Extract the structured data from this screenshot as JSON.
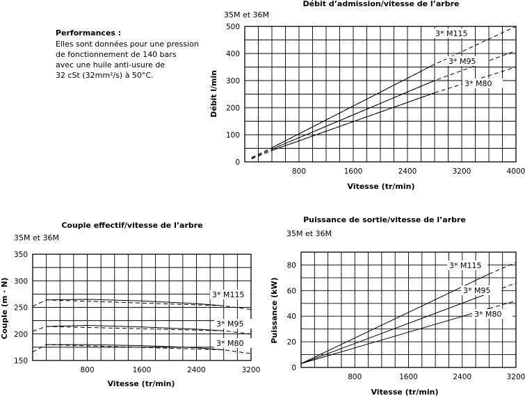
{
  "performance_note": {
    "title": "Performances :",
    "lines": [
      "Elles sont données pour une pression",
      "de fonctionnement de 140 bars",
      "avec une huile anti-usure de",
      "32 cSt (32mm²/s) à 50°C."
    ]
  },
  "chart_data": [
    {
      "type": "line",
      "title": "Débit d’admission/vitesse de l’arbre",
      "model_label": "35M et 36M",
      "xlabel": "Vitesse (tr/min)",
      "ylabel": "Débit l/min",
      "xlim": [
        0,
        4000
      ],
      "ylim": [
        0,
        500
      ],
      "xticks": [
        800,
        1600,
        2400,
        3200,
        4000
      ],
      "yticks": [
        0,
        100,
        200,
        300,
        400,
        500
      ],
      "grid": true,
      "series": [
        {
          "name": "3* M115",
          "solid": [
            [
              400,
              52
            ],
            [
              2800,
              360
            ]
          ],
          "dashed": [
            [
              100,
              16
            ],
            [
              400,
              52
            ],
            [
              2800,
              360
            ],
            [
              4000,
              500
            ]
          ]
        },
        {
          "name": "3* M95",
          "solid": [
            [
              400,
              47
            ],
            [
              2800,
              300
            ]
          ],
          "dashed": [
            [
              100,
              13
            ],
            [
              400,
              47
            ],
            [
              2800,
              300
            ],
            [
              4000,
              410
            ]
          ]
        },
        {
          "name": "3* M80",
          "solid": [
            [
              400,
              42
            ],
            [
              2800,
              255
            ]
          ],
          "dashed": [
            [
              100,
              11
            ],
            [
              400,
              42
            ],
            [
              2800,
              255
            ],
            [
              4000,
              350
            ]
          ]
        }
      ]
    },
    {
      "type": "line",
      "title": "Couple effectif/vitesse de l’arbre",
      "model_label": "35M et 36M",
      "xlabel": "Vitesse (tr/min)",
      "ylabel": "Couple (m · N)",
      "xlim": [
        0,
        3200
      ],
      "ylim": [
        150,
        350
      ],
      "xticks": [
        800,
        1600,
        2400,
        3200
      ],
      "yticks": [
        150,
        200,
        250,
        300,
        350
      ],
      "grid": true,
      "series": [
        {
          "name": "3* M115",
          "solid": [
            [
              200,
              264
            ],
            [
              800,
              265
            ],
            [
              1600,
              262
            ],
            [
              2400,
              257
            ],
            [
              2800,
              253
            ]
          ],
          "dashed": [
            [
              0,
              252
            ],
            [
              200,
              264
            ],
            [
              2800,
              253
            ],
            [
              3200,
              246
            ]
          ]
        },
        {
          "name": "3* M95",
          "solid": [
            [
              200,
              214
            ],
            [
              800,
              216
            ],
            [
              1600,
              213
            ],
            [
              2400,
              209
            ],
            [
              2800,
              206
            ]
          ],
          "dashed": [
            [
              0,
              205
            ],
            [
              200,
              214
            ],
            [
              2800,
              206
            ],
            [
              3200,
              200
            ]
          ]
        },
        {
          "name": "3* M80",
          "solid": [
            [
              200,
              180
            ],
            [
              800,
              180
            ],
            [
              1600,
              178
            ],
            [
              2400,
              174
            ],
            [
              2800,
              170
            ]
          ],
          "dashed": [
            [
              0,
              166
            ],
            [
              200,
              180
            ],
            [
              2800,
              170
            ],
            [
              3200,
              163
            ]
          ]
        }
      ]
    },
    {
      "type": "line",
      "title": "Puissance de sortie/vitesse de l’arbre",
      "model_label": "35M et 36M",
      "xlabel": "Vitesse (tr/min)",
      "ylabel": "Puissance (kW)",
      "xlim": [
        0,
        3200
      ],
      "ylim": [
        0,
        90
      ],
      "xticks": [
        800,
        1600,
        2400,
        3200
      ],
      "yticks": [
        0,
        20,
        40,
        60,
        80
      ],
      "grid": true,
      "series": [
        {
          "name": "3* M115",
          "solid": [
            [
              0,
              3
            ],
            [
              2800,
              73
            ]
          ],
          "dashed": [
            [
              2800,
              73
            ],
            [
              3200,
              82
            ]
          ]
        },
        {
          "name": "3* M95",
          "solid": [
            [
              0,
              3
            ],
            [
              2800,
              58
            ]
          ],
          "dashed": [
            [
              2800,
              58
            ],
            [
              3200,
              66
            ]
          ]
        },
        {
          "name": "3* M80",
          "solid": [
            [
              0,
              3
            ],
            [
              2800,
              46
            ]
          ],
          "dashed": [
            [
              2800,
              46
            ],
            [
              3200,
              52
            ]
          ]
        }
      ]
    }
  ]
}
